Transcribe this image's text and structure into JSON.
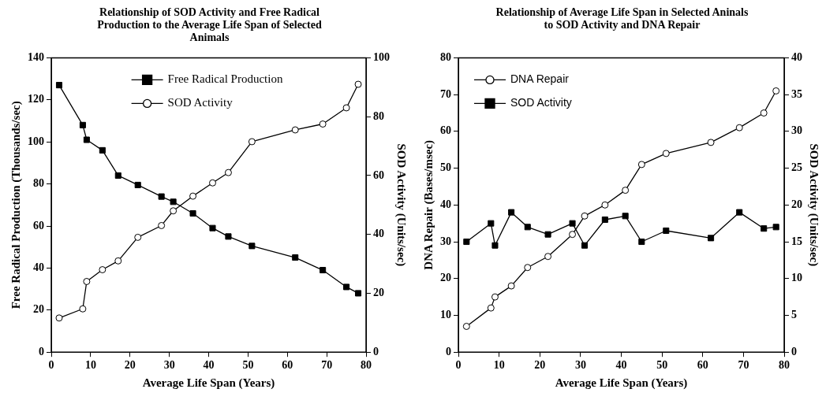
{
  "chart_data": [
    {
      "type": "line",
      "title": "Relationship of SOD Activity and Free Radical Production to the Average Life Span of Selected Animals",
      "xlabel": "Average Life Span (Years)",
      "ylabel": "Free Radical Production (Thousands/sec)",
      "y2label": "SOD Activity (Units/sec)",
      "xlim": [
        0,
        80
      ],
      "xticks": [
        0,
        10,
        20,
        30,
        40,
        50,
        60,
        70,
        80
      ],
      "ylim": [
        0,
        140
      ],
      "yticks": [
        0,
        20,
        40,
        60,
        80,
        100,
        120,
        140
      ],
      "y2lim": [
        0,
        100
      ],
      "y2ticks": [
        0,
        20,
        40,
        60,
        80,
        100
      ],
      "grid": false,
      "legend": "top",
      "line_style": "solid",
      "series": [
        {
          "name": "Free Radical Production",
          "color": "#000000",
          "marker": "square",
          "x": [
            2,
            8,
            9,
            13,
            17,
            22,
            28,
            31,
            36,
            41,
            45,
            51,
            62,
            69,
            75,
            78
          ],
          "values": [
            127,
            108,
            101,
            96,
            84,
            79.5,
            74,
            71.5,
            66,
            59,
            55,
            50.5,
            45,
            39,
            31,
            28
          ]
        },
        {
          "name": "SOD Activity",
          "color": "#000000",
          "marker": "circle",
          "axis": "y2",
          "x": [
            2,
            8,
            9,
            13,
            17,
            22,
            28,
            31,
            36,
            41,
            45,
            51,
            62,
            69,
            75,
            78
          ],
          "values": [
            11.6,
            14.7,
            24,
            28,
            31,
            39,
            43,
            48,
            53,
            57.5,
            61,
            71.5,
            75.5,
            77.5,
            83,
            91
          ]
        }
      ]
    },
    {
      "type": "line",
      "title": "Relationship of Average Life Span in Selected Aninals to SOD Activity and DNA Repair",
      "xlabel": "Average Life Span (Years)",
      "ylabel": "DNA Repair (Bases/msec)",
      "y2label": "SOD Activity (Units/sec)",
      "xlim": [
        0,
        80
      ],
      "xticks": [
        0,
        10,
        20,
        30,
        40,
        50,
        60,
        70,
        80
      ],
      "ylim": [
        0,
        80
      ],
      "yticks": [
        0,
        10,
        20,
        30,
        40,
        50,
        60,
        70,
        80
      ],
      "y2lim": [
        0,
        40
      ],
      "y2ticks": [
        0,
        5,
        10,
        15,
        20,
        25,
        30,
        35,
        40
      ],
      "grid": false,
      "legend": "top left",
      "line_style": "solid",
      "series": [
        {
          "name": "DNA Repair",
          "color": "#000000",
          "marker": "circle",
          "x": [
            2,
            8,
            9,
            13,
            17,
            22,
            28,
            31,
            36,
            41,
            45,
            51,
            62,
            69,
            75,
            78
          ],
          "values": [
            7,
            12,
            15,
            18,
            23,
            26,
            32,
            37,
            40,
            44,
            51,
            54,
            57,
            61,
            65,
            71
          ]
        },
        {
          "name": "SOD Activity",
          "color": "#000000",
          "marker": "square",
          "axis": "y2",
          "x": [
            2,
            8,
            9,
            13,
            17,
            22,
            28,
            31,
            36,
            41,
            45,
            51,
            62,
            69,
            75,
            78
          ],
          "values": [
            15,
            17.5,
            14.5,
            19,
            17,
            16,
            17.5,
            14.5,
            18,
            18.5,
            15,
            16.5,
            15.5,
            19,
            16.8,
            17
          ]
        }
      ]
    }
  ]
}
